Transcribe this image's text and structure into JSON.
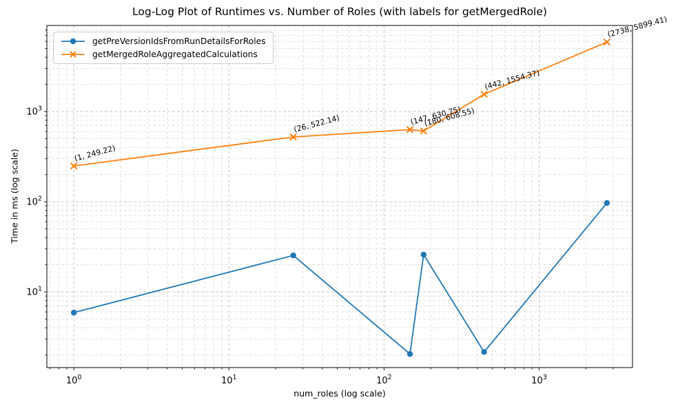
{
  "chart_data": {
    "type": "line",
    "title": "Log-Log Plot of Runtimes vs. Number of Roles (with labels for getMergedRole)",
    "xlabel": "num_roles (log scale)",
    "ylabel": "Time in ms (log scale)",
    "x_scale": "log",
    "y_scale": "log",
    "xlim": [
      0.67,
      4000
    ],
    "ylim": [
      1.45,
      9000
    ],
    "x_ticks": [
      1,
      10,
      100,
      1000
    ],
    "y_ticks": [
      10,
      100,
      1000
    ],
    "grid": "both-major-and-minor, dashed",
    "legend_position": "upper left",
    "series": [
      {
        "name": "getPreVersionIdsFromRunDetailsForRoles",
        "color": "#1f77b4",
        "marker": "circle",
        "x": [
          1,
          26,
          147,
          180,
          442,
          2738
        ],
        "y": [
          5.9,
          25.4,
          2.05,
          25.9,
          2.16,
          97
        ]
      },
      {
        "name": "getMergedRoleAggregatedCalculations",
        "color": "#ff7f0e",
        "marker": "x",
        "x": [
          1,
          26,
          147,
          180,
          442,
          2738
        ],
        "y": [
          249.22,
          522.14,
          630.75,
          608.55,
          1554.37,
          5899.41
        ]
      }
    ],
    "annotations": [
      {
        "x": 1,
        "y": 249.22,
        "label": "(1, 249.22)"
      },
      {
        "x": 26,
        "y": 522.14,
        "label": "(26, 522.14)"
      },
      {
        "x": 147,
        "y": 630.75,
        "label": "(147, 630.75)"
      },
      {
        "x": 180,
        "y": 608.55,
        "label": "(180, 608.55)"
      },
      {
        "x": 442,
        "y": 1554.37,
        "label": "(442, 1554.37)"
      },
      {
        "x": 2738,
        "y": 5899.41,
        "label": "(2738, 5899.41)"
      }
    ],
    "annotation_rotation_deg": 15,
    "colors": {
      "frame": "#000000",
      "major_grid": "#c6c6c6",
      "minor_grid": "#e0e0e0",
      "text": "#000000"
    }
  }
}
